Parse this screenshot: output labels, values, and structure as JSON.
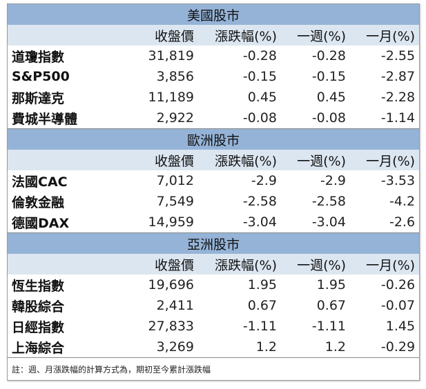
{
  "columns": [
    "",
    "收盤價",
    "漲跌幅(%)",
    "一週(%)",
    "一月(%)"
  ],
  "sections": [
    {
      "title": "美國股市",
      "rows": [
        {
          "name": "道瓊指數",
          "close": "31,819",
          "change": "-0.28",
          "week": "-0.28",
          "month": "-2.55"
        },
        {
          "name": "S&P500",
          "close": "3,856",
          "change": "-0.15",
          "week": "-0.15",
          "month": "-2.87"
        },
        {
          "name": "那斯達克",
          "close": "11,189",
          "change": "0.45",
          "week": "0.45",
          "month": "-2.28"
        },
        {
          "name": "費城半導體",
          "close": "2,922",
          "change": "-0.08",
          "week": "-0.08",
          "month": "-1.14"
        }
      ]
    },
    {
      "title": "歐洲股市",
      "rows": [
        {
          "name": "法國CAC",
          "close": "7,012",
          "change": "-2.9",
          "week": "-2.9",
          "month": "-3.53"
        },
        {
          "name": "倫敦金融",
          "close": "7,549",
          "change": "-2.58",
          "week": "-2.58",
          "month": "-4.2"
        },
        {
          "name": "德國DAX",
          "close": "14,959",
          "change": "-3.04",
          "week": "-3.04",
          "month": "-2.6"
        }
      ]
    },
    {
      "title": "亞洲股市",
      "rows": [
        {
          "name": "恆生指數",
          "close": "19,696",
          "change": "1.95",
          "week": "1.95",
          "month": "-0.26"
        },
        {
          "name": "韓股綜合",
          "close": "2,411",
          "change": "0.67",
          "week": "0.67",
          "month": "-0.07"
        },
        {
          "name": "日經指數",
          "close": "27,833",
          "change": "-1.11",
          "week": "-1.11",
          "month": "1.45"
        },
        {
          "name": "上海綜合",
          "close": "3,269",
          "change": "1.2",
          "week": "1.2",
          "month": "-0.29"
        }
      ]
    }
  ],
  "note": "註：週、月漲跌幅的計算方式為，期初至今累計漲跌幅",
  "colors": {
    "section_header_bg": "#95b3d7",
    "column_header_bg": "#dce6f1",
    "border": "#9a9a9a"
  }
}
